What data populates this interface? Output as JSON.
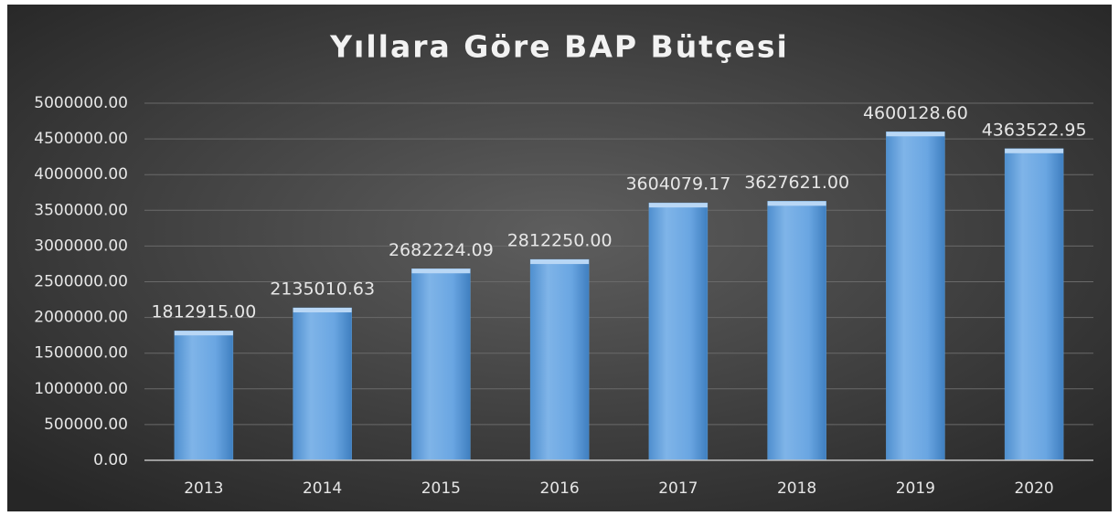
{
  "chart_data": {
    "type": "bar",
    "title": "Yıllara Göre BAP Bütçesi",
    "categories": [
      "2013",
      "2014",
      "2015",
      "2016",
      "2017",
      "2018",
      "2019",
      "2020"
    ],
    "values": [
      1812915,
      2135010.63,
      2682224.09,
      2812250,
      3604079.17,
      3627621,
      4600128.6,
      4363522.95
    ],
    "value_labels": [
      "1812915.00",
      "2135010.63",
      "2682224.09",
      "2812250.00",
      "3604079.17",
      "3627621.00",
      "4600128.60",
      "4363522.95"
    ],
    "color": "#5b9bd5",
    "ylim": [
      0,
      5000000
    ],
    "yticks": [
      {
        "value": 0,
        "label": "0.00"
      },
      {
        "value": 500000,
        "label": "500000.00"
      },
      {
        "value": 1000000,
        "label": "1000000.00"
      },
      {
        "value": 1500000,
        "label": "1500000.00"
      },
      {
        "value": 2000000,
        "label": "2000000.00"
      },
      {
        "value": 2500000,
        "label": "2500000.00"
      },
      {
        "value": 3000000,
        "label": "3000000.00"
      },
      {
        "value": 3500000,
        "label": "3500000.00"
      },
      {
        "value": 4000000,
        "label": "4000000.00"
      },
      {
        "value": 4500000,
        "label": "4500000.00"
      },
      {
        "value": 5000000,
        "label": "5000000.00"
      }
    ],
    "grid": true
  }
}
